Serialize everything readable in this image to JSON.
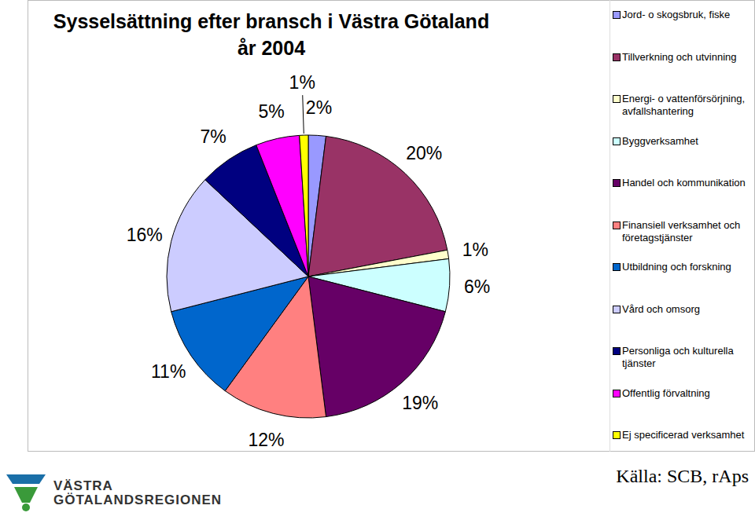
{
  "chart_data": {
    "type": "pie",
    "title": "Sysselsättning efter bransch i Västra Götaland\når 2004",
    "categories": [
      "Jord- o skogsbruk, fiske",
      "Tillverkning och utvinning",
      "Energi- o vattenförsörjning, avfallshantering",
      "Byggverksamhet",
      "Handel och kommunikation",
      "Finansiell verksamhet och företagstjänster",
      "Utbildning och forskning",
      "Vård och omsorg",
      "Personliga och kulturella tjänster",
      "Offentlig förvaltning",
      "Ej specificerad verksamhet"
    ],
    "values": [
      2,
      20,
      1,
      6,
      19,
      12,
      11,
      16,
      7,
      5,
      1
    ],
    "value_labels": [
      "2%",
      "20%",
      "1%",
      "6%",
      "19%",
      "12%",
      "11%",
      "16%",
      "7%",
      "5%",
      "1%"
    ],
    "colors": [
      "#9999FF",
      "#993366",
      "#FFFFCC",
      "#CCFFFF",
      "#660066",
      "#FF8080",
      "#0066CC",
      "#CCCCFF",
      "#000080",
      "#FF00FF",
      "#FFFF00"
    ],
    "data_labels": true,
    "legend": "right",
    "source": "Källa: SCB, rAps",
    "logo": [
      "VÄSTRA",
      "GÖTALANDSREGIONEN"
    ]
  }
}
